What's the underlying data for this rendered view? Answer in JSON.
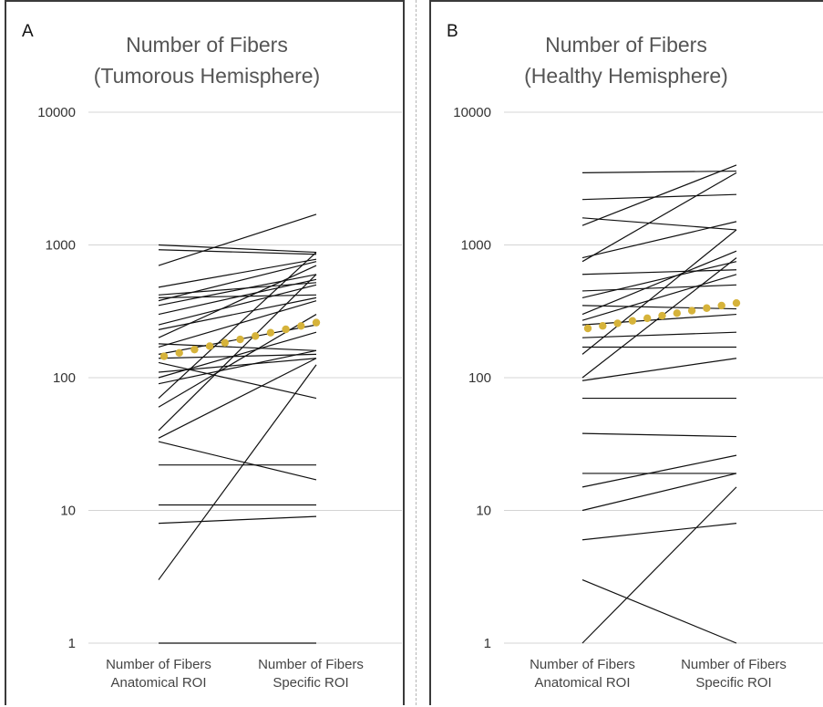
{
  "chart_data": [
    {
      "type": "line",
      "panel_label": "A",
      "title": [
        "Number of Fibers",
        "(Tumorous Hemisphere)"
      ],
      "yscale": "log",
      "ylim": [
        1,
        10000
      ],
      "yticks": [
        "1",
        "10",
        "100",
        "1000",
        "10000"
      ],
      "grid": true,
      "categories": [
        [
          "Number of Fibers",
          "Anatomical ROI"
        ],
        [
          "Number of Fibers",
          "Specific ROI"
        ]
      ],
      "pairs": [
        [
          1000,
          880
        ],
        [
          920,
          850
        ],
        [
          700,
          1700
        ],
        [
          480,
          780
        ],
        [
          420,
          520
        ],
        [
          400,
          420
        ],
        [
          380,
          750
        ],
        [
          350,
          600
        ],
        [
          300,
          550
        ],
        [
          250,
          500
        ],
        [
          230,
          400
        ],
        [
          200,
          700
        ],
        [
          180,
          160
        ],
        [
          170,
          380
        ],
        [
          150,
          250
        ],
        [
          140,
          150
        ],
        [
          130,
          70
        ],
        [
          110,
          140
        ],
        [
          100,
          220
        ],
        [
          90,
          160
        ],
        [
          70,
          880
        ],
        [
          60,
          300
        ],
        [
          40,
          600
        ],
        [
          35,
          140
        ],
        [
          33,
          17
        ],
        [
          22,
          22
        ],
        [
          11,
          11
        ],
        [
          8,
          9
        ],
        [
          3,
          125
        ],
        [
          1,
          1
        ]
      ],
      "trend": {
        "color": "#d6b33a",
        "start": 145,
        "end": 260,
        "points": 11
      }
    },
    {
      "type": "line",
      "panel_label": "B",
      "title": [
        "Number of Fibers",
        "(Healthy Hemisphere)"
      ],
      "yscale": "log",
      "ylim": [
        1,
        10000
      ],
      "yticks": [
        "1",
        "10",
        "100",
        "1000",
        "10000"
      ],
      "grid": true,
      "categories": [
        [
          "Number of Fibers",
          "Anatomical ROI"
        ],
        [
          "Number of Fibers",
          "Specific ROI"
        ]
      ],
      "pairs": [
        [
          3500,
          3600
        ],
        [
          2200,
          2400
        ],
        [
          1600,
          1300
        ],
        [
          1400,
          4000
        ],
        [
          800,
          1500
        ],
        [
          750,
          3500
        ],
        [
          600,
          650
        ],
        [
          450,
          500
        ],
        [
          400,
          750
        ],
        [
          350,
          330
        ],
        [
          300,
          900
        ],
        [
          270,
          600
        ],
        [
          250,
          300
        ],
        [
          200,
          220
        ],
        [
          170,
          170
        ],
        [
          150,
          1300
        ],
        [
          100,
          800
        ],
        [
          95,
          140
        ],
        [
          70,
          70
        ],
        [
          38,
          36
        ],
        [
          19,
          19
        ],
        [
          15,
          26
        ],
        [
          10,
          19
        ],
        [
          6,
          8
        ],
        [
          3,
          1
        ],
        [
          1,
          15
        ]
      ],
      "trend": {
        "color": "#d6b33a",
        "start": 235,
        "end": 365,
        "points": 11
      }
    }
  ]
}
